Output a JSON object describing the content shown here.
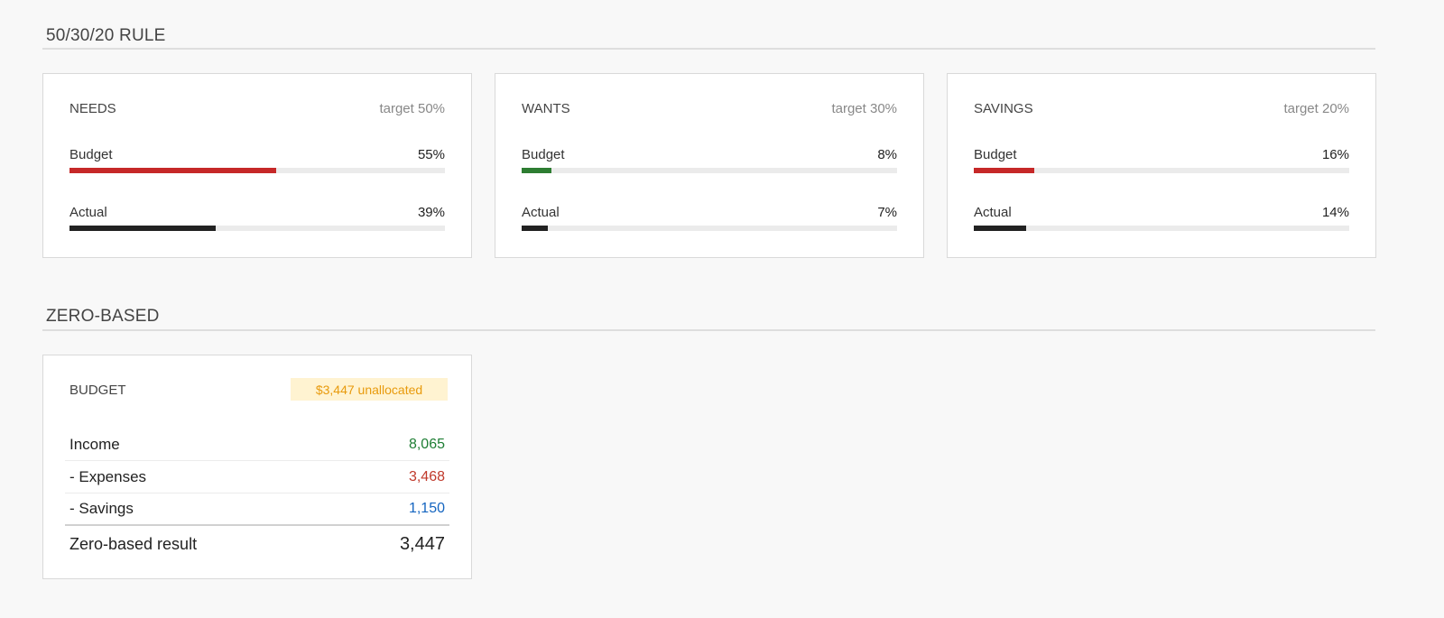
{
  "rule_section": {
    "title": "50/30/20 RULE",
    "cards": [
      {
        "name": "NEEDS",
        "target": "target 50%",
        "budget": {
          "label": "Budget",
          "value": "55%",
          "percent": 55,
          "color": "#c62828"
        },
        "actual": {
          "label": "Actual",
          "value": "39%",
          "percent": 39,
          "color": "#222222"
        }
      },
      {
        "name": "WANTS",
        "target": "target 30%",
        "budget": {
          "label": "Budget",
          "value": "8%",
          "percent": 8,
          "color": "#2e7d32"
        },
        "actual": {
          "label": "Actual",
          "value": "7%",
          "percent": 7,
          "color": "#222222"
        }
      },
      {
        "name": "SAVINGS",
        "target": "target 20%",
        "budget": {
          "label": "Budget",
          "value": "16%",
          "percent": 16,
          "color": "#c62828"
        },
        "actual": {
          "label": "Actual",
          "value": "14%",
          "percent": 14,
          "color": "#222222"
        }
      }
    ]
  },
  "zero_section": {
    "title": "ZERO-BASED",
    "card": {
      "name": "BUDGET",
      "badge": "$3,447 unallocated",
      "rows": [
        {
          "label": "Income",
          "value": "8,065",
          "color": "#1e7e34"
        },
        {
          "label": "- Expenses",
          "value": "3,468",
          "color": "#c0392b"
        },
        {
          "label": "- Savings",
          "value": "1,150",
          "color": "#1565c0"
        }
      ],
      "result": {
        "label": "Zero-based result",
        "value": "3,447",
        "color": "#222222"
      }
    }
  }
}
